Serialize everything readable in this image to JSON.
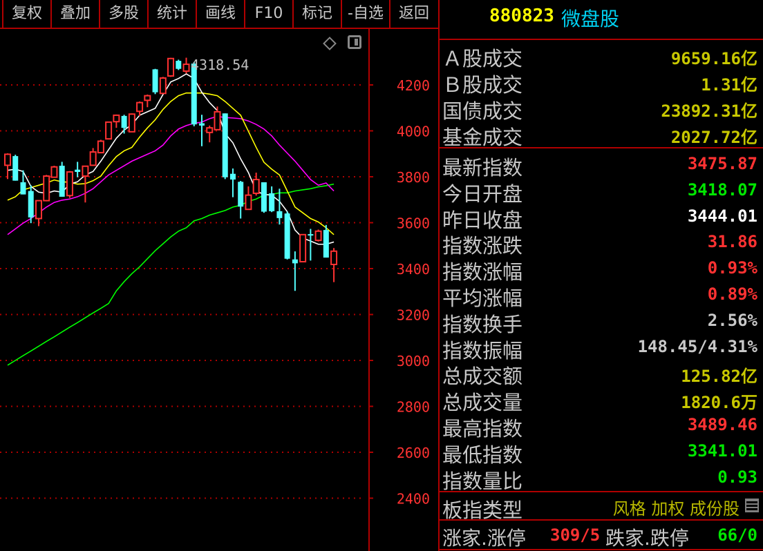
{
  "toolbar": {
    "items": [
      "复权",
      "叠加",
      "多股",
      "统计",
      "画线",
      "F10",
      "标记",
      "-自选",
      "返回"
    ]
  },
  "chart": {
    "high_marker": "4318.54",
    "y_ticks": [
      4200,
      4000,
      3800,
      3600,
      3400,
      3200,
      3000,
      2800,
      2600,
      2400
    ],
    "colors": {
      "up": "#ff3232",
      "down": "#54ffff",
      "ma5": "#ffffff",
      "ma10": "#ffff00",
      "ma20": "#ff00ff",
      "ma60": "#00ff00",
      "grid": "#b00000",
      "axis_text": "#ff3232"
    }
  },
  "chart_data": {
    "type": "candlestick",
    "ylim": [
      2300,
      4350
    ],
    "candles": [
      [
        3850,
        3898,
        3902,
        3790
      ],
      [
        3890,
        3783,
        3896,
        3783
      ],
      [
        3776,
        3723,
        3828,
        3723
      ],
      [
        3738,
        3623,
        3763,
        3598
      ],
      [
        3618,
        3696,
        3696,
        3585
      ],
      [
        3696,
        3803,
        3808,
        3693
      ],
      [
        3798,
        3843,
        3848,
        3796
      ],
      [
        3848,
        3713,
        3865,
        3713
      ],
      [
        3718,
        3821,
        3825,
        3708
      ],
      [
        3831,
        3821,
        3865,
        3798
      ],
      [
        3803,
        3846,
        3848,
        3688
      ],
      [
        3850,
        3908,
        3925,
        3850
      ],
      [
        3905,
        3955,
        3961,
        3905
      ],
      [
        3965,
        4038,
        4040,
        3965
      ],
      [
        4040,
        4068,
        4071,
        4013
      ],
      [
        4065,
        4013,
        4070,
        3988
      ],
      [
        3996,
        4073,
        4076,
        3996
      ],
      [
        4085,
        4123,
        4128,
        4065
      ],
      [
        4133,
        4153,
        4158,
        4103
      ],
      [
        4268,
        4168,
        4270,
        4160
      ],
      [
        4163,
        4230,
        4235,
        4160
      ],
      [
        4239,
        4315,
        4318,
        4235
      ],
      [
        4305,
        4270,
        4310,
        4265
      ],
      [
        4260,
        4290,
        4318.54,
        4250
      ],
      [
        4293,
        4028,
        4300,
        4020
      ],
      [
        4033,
        4023,
        4070,
        3933
      ],
      [
        3993,
        4013,
        4023,
        3950
      ],
      [
        4005,
        4083,
        4106,
        4005
      ],
      [
        4076,
        3798,
        4076,
        3790
      ],
      [
        3813,
        3788,
        3836,
        3711
      ],
      [
        3778,
        3670,
        3782,
        3618
      ],
      [
        3658,
        3720,
        3758,
        3658
      ],
      [
        3728,
        3788,
        3818,
        3718
      ],
      [
        3776,
        3648,
        3776,
        3643
      ],
      [
        3728,
        3650,
        3758,
        3646
      ],
      [
        3650,
        3620,
        3748,
        3592
      ],
      [
        3640,
        3443,
        3648,
        3440
      ],
      [
        3440,
        3423,
        3475,
        3303
      ],
      [
        3430,
        3548,
        3548,
        3430
      ],
      [
        3550,
        3546,
        3573,
        3435
      ],
      [
        3523,
        3563,
        3570,
        3518
      ],
      [
        3568,
        3448,
        3590,
        3448
      ],
      [
        3418.07,
        3475.87,
        3489.46,
        3341.01
      ]
    ],
    "ma": {
      "ma5": [
        3828,
        3833,
        3823,
        3758,
        3733,
        3728,
        3738,
        3733,
        3768,
        3778,
        3808,
        3823,
        3868,
        3918,
        3968,
        4003,
        4028,
        4068,
        4083,
        4098,
        4158,
        4213,
        4228,
        4248,
        4228,
        4168,
        4123,
        4088,
        3988,
        3948,
        3878,
        3818,
        3738,
        3723,
        3720,
        3693,
        3648,
        3568,
        3533,
        3520,
        3506,
        3506,
        3516
      ],
      "ma10": [
        3698,
        3713,
        3743,
        3753,
        3763,
        3773,
        3786,
        3778,
        3776,
        3768,
        3770,
        3783,
        3803,
        3848,
        3888,
        3913,
        3928,
        3973,
        4013,
        4048,
        4093,
        4128,
        4153,
        4165,
        4165,
        4165,
        4160,
        4153,
        4128,
        4098,
        4068,
        3998,
        3928,
        3863,
        3833,
        3808,
        3738,
        3668,
        3643,
        3618,
        3603,
        3578,
        3548
      ],
      "ma20": [
        3548,
        3573,
        3598,
        3618,
        3643,
        3668,
        3688,
        3698,
        3703,
        3713,
        3728,
        3748,
        3778,
        3808,
        3828,
        3848,
        3868,
        3883,
        3898,
        3913,
        3938,
        3978,
        4008,
        4023,
        4033,
        4038,
        4053,
        4063,
        4058,
        4056,
        4053,
        4043,
        4028,
        4008,
        3978,
        3938,
        3903,
        3868,
        3828,
        3788,
        3763,
        3773,
        3738
      ],
      "ma60": [
        2979,
        3000,
        3021,
        3041,
        3062,
        3083,
        3103,
        3124,
        3145,
        3165,
        3186,
        3207,
        3227,
        3248,
        3303,
        3343,
        3378,
        3408,
        3443,
        3478,
        3508,
        3538,
        3563,
        3578,
        3608,
        3618,
        3633,
        3643,
        3653,
        3668,
        3676,
        3693,
        3703,
        3720,
        3723,
        3730,
        3730,
        3738,
        3743,
        3748,
        3756,
        3761,
        3768
      ]
    }
  },
  "panel": {
    "code": "880823",
    "name": "微盘股",
    "turnover": [
      {
        "label": "Ａ股成交",
        "value": "9659.16亿",
        "color": "#c8c800"
      },
      {
        "label": "Ｂ股成交",
        "value": "1.31亿",
        "color": "#c8c800"
      },
      {
        "label": "国债成交",
        "value": "23892.31亿",
        "color": "#c8c800"
      },
      {
        "label": "基金成交",
        "value": "2027.72亿",
        "color": "#c8c800"
      }
    ],
    "stats": [
      {
        "label": "最新指数",
        "value": "3475.87",
        "color": "#ff3232"
      },
      {
        "label": "今日开盘",
        "value": "3418.07",
        "color": "#00e600"
      },
      {
        "label": "昨日收盘",
        "value": "3444.01",
        "color": "#ffffff"
      },
      {
        "label": "指数涨跌",
        "value": "31.86",
        "color": "#ff3232"
      },
      {
        "label": "指数涨幅",
        "value": "0.93%",
        "color": "#ff3232"
      },
      {
        "label": "平均涨幅",
        "value": "0.89%",
        "color": "#ff3232"
      },
      {
        "label": "指数换手",
        "value": "2.56%",
        "color": "#c8c8c8"
      },
      {
        "label": "指数振幅",
        "value": "148.45/4.31%",
        "color": "#c8c8c8"
      },
      {
        "label": "总成交额",
        "value": "125.82亿",
        "color": "#c8c800"
      },
      {
        "label": "总成交量",
        "value": "1820.6万",
        "color": "#c8c800"
      },
      {
        "label": "最高指数",
        "value": "3489.46",
        "color": "#ff3232"
      },
      {
        "label": "最低指数",
        "value": "3341.01",
        "color": "#00e600"
      },
      {
        "label": "指数量比",
        "value": "0.93",
        "color": "#00e600"
      }
    ],
    "type_row": {
      "label": "板指类型",
      "tags": "风格 加权 成份股"
    },
    "breadth": {
      "up_label": "涨家.涨停",
      "up_value": "309/5",
      "down_label": "跌家.跌停",
      "down_value": "66/0"
    }
  }
}
